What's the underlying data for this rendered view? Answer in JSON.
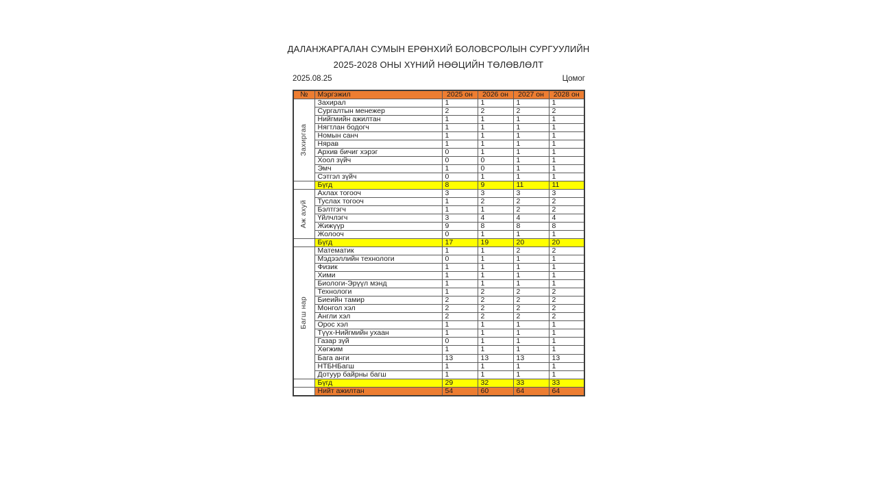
{
  "page": {
    "title_line1": "ДАЛАНЖАРГАЛАН СУМЫН ЕРӨНХИЙ БОЛОВСРОЛЫН СУРГУУЛИЙН",
    "title_line2": "2025-2028 ОНЫ ХҮНИЙ НӨӨЦИЙН ТӨЛӨВЛӨЛТ",
    "date": "2025.08.25",
    "author": "Цомог"
  },
  "colors": {
    "header_bg": "#ED7D31",
    "subtotal_bg": "#FFFF00",
    "total_bg": "#ED7D31",
    "border": "#5a5a5a"
  },
  "table": {
    "headers": [
      "№",
      "Мэргэжил",
      "2025 он",
      "2026 он",
      "2027 он",
      "2028 он"
    ],
    "sections": [
      {
        "group": "Захиргаа",
        "rows": [
          {
            "label": "Захирал",
            "values": [
              1,
              1,
              1,
              1
            ]
          },
          {
            "label": "Сургалтын менежер",
            "values": [
              2,
              2,
              2,
              2
            ]
          },
          {
            "label": "Нийгмийн ажилтан",
            "values": [
              1,
              1,
              1,
              1
            ]
          },
          {
            "label": "Нягтлан бодогч",
            "values": [
              1,
              1,
              1,
              1
            ]
          },
          {
            "label": "Номын санч",
            "values": [
              1,
              1,
              1,
              1
            ]
          },
          {
            "label": "Нярав",
            "values": [
              1,
              1,
              1,
              1
            ]
          },
          {
            "label": "Архив бичиг хэрэг",
            "values": [
              0,
              1,
              1,
              1
            ]
          },
          {
            "label": "Хоол зүйч",
            "values": [
              0,
              0,
              1,
              1
            ]
          },
          {
            "label": "Эмч",
            "values": [
              1,
              0,
              1,
              1
            ]
          },
          {
            "label": "Сэтгэл зүйч",
            "values": [
              0,
              1,
              1,
              1
            ]
          }
        ],
        "subtotal": {
          "label": "Бүгд",
          "values": [
            8,
            9,
            11,
            11
          ]
        }
      },
      {
        "group": "Аж ахуй",
        "rows": [
          {
            "label": "Ахлах тогооч",
            "values": [
              3,
              3,
              3,
              3
            ]
          },
          {
            "label": "Туслах тогооч",
            "values": [
              1,
              2,
              2,
              2
            ]
          },
          {
            "label": "Бэлтгэгч",
            "values": [
              1,
              1,
              2,
              2
            ]
          },
          {
            "label": "Үйлчлэгч",
            "values": [
              3,
              4,
              4,
              4
            ]
          },
          {
            "label": "Жижүүр",
            "values": [
              9,
              8,
              8,
              8
            ]
          },
          {
            "label": "Жолооч",
            "values": [
              0,
              1,
              1,
              1
            ]
          }
        ],
        "subtotal": {
          "label": "Бүгд",
          "values": [
            17,
            19,
            20,
            20
          ]
        }
      },
      {
        "group": "Багш нар",
        "rows": [
          {
            "label": "Математик",
            "values": [
              1,
              1,
              2,
              2
            ]
          },
          {
            "label": "Мэдээллийн технологи",
            "values": [
              0,
              1,
              1,
              1
            ]
          },
          {
            "label": "Физик",
            "values": [
              1,
              1,
              1,
              1
            ]
          },
          {
            "label": "Хими",
            "values": [
              1,
              1,
              1,
              1
            ]
          },
          {
            "label": "Биологи-Эрүүл мэнд",
            "values": [
              1,
              1,
              1,
              1
            ]
          },
          {
            "label": "Технологи",
            "values": [
              1,
              2,
              2,
              2
            ]
          },
          {
            "label": "Биеийн тамир",
            "values": [
              2,
              2,
              2,
              2
            ]
          },
          {
            "label": "Монгол хэл",
            "values": [
              2,
              2,
              2,
              2
            ]
          },
          {
            "label": "Англи хэл",
            "values": [
              2,
              2,
              2,
              2
            ]
          },
          {
            "label": "Орос хэл",
            "values": [
              1,
              1,
              1,
              1
            ]
          },
          {
            "label": "Түүх-Нийгмийн ухаан",
            "values": [
              1,
              1,
              1,
              1
            ]
          },
          {
            "label": "Газар зүй",
            "values": [
              0,
              1,
              1,
              1
            ]
          },
          {
            "label": "Хөгжим",
            "values": [
              1,
              1,
              1,
              1
            ]
          },
          {
            "label": "Бага анги",
            "values": [
              13,
              13,
              13,
              13
            ]
          },
          {
            "label": "НТБНБагш",
            "values": [
              1,
              1,
              1,
              1
            ]
          },
          {
            "label": "Дотуур байрны багш",
            "values": [
              1,
              1,
              1,
              1
            ]
          }
        ],
        "subtotal": {
          "label": "Бүгд",
          "values": [
            29,
            32,
            33,
            33
          ]
        }
      }
    ],
    "total": {
      "label": "Нийт ажилтан",
      "values": [
        54,
        60,
        64,
        64
      ]
    }
  }
}
